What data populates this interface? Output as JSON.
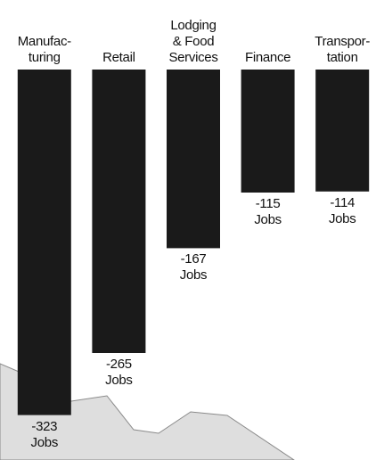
{
  "chart_data": {
    "type": "bar",
    "categories": [
      "Manufac-\nturing",
      "Retail",
      "Lodging\n& Food\nServices",
      "Finance",
      "Transpor-\ntation"
    ],
    "values": [
      -323,
      -265,
      -167,
      -115,
      -114
    ],
    "value_labels": [
      "-323\nJobs",
      "-265\nJobs",
      "-167\nJobs",
      "-115\nJobs",
      "-114\nJobs"
    ],
    "color": "#1a1a1a",
    "ylim": [
      -330,
      0
    ]
  }
}
